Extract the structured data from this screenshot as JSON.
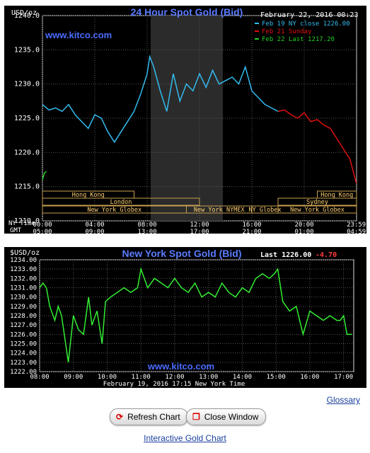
{
  "chart_data": [
    {
      "type": "line",
      "title": "24 Hour Spot Gold (Bid)",
      "watermark": "www.kitco.com",
      "date_text": "February 22, 2016 00:23",
      "yunit": "USD/oz",
      "ylim": [
        1210,
        1240
      ],
      "yticks": [
        "1210.0",
        "1215.0",
        "1220.0",
        "1225.0",
        "1230.0",
        "1235.0",
        "1240.0"
      ],
      "tz_labels": [
        "NY Time",
        "GMT"
      ],
      "x_ny": [
        "00:00",
        "04:00",
        "08:00",
        "12:00",
        "16:00",
        "20:00",
        "23:59"
      ],
      "x_gmt": [
        "05:00",
        "09:00",
        "13:00",
        "17:00",
        "21:00",
        "01:00",
        "04:59"
      ],
      "legend": [
        {
          "label": "Feb 19 NY close 1226.00",
          "color": "#33bbee"
        },
        {
          "label": "Feb 21 Sunday",
          "color": "#e01010"
        },
        {
          "label": "Feb 22 Last 1217.20",
          "color": "#22cc22"
        }
      ],
      "sessions": [
        {
          "label": "Hong Kong",
          "row": 0
        },
        {
          "label": "London",
          "row": 1
        },
        {
          "label": "New York Globex",
          "row": 2
        },
        {
          "label": "New York NYMEX",
          "row": 2
        },
        {
          "label": "NY Globex",
          "row": 2
        },
        {
          "label": "Hong Kong",
          "row": 0
        },
        {
          "label": "Sydney",
          "row": 1
        },
        {
          "label": "New York Globex",
          "row": 2
        }
      ],
      "series": [
        {
          "name": "Feb 19 NY close 1226.00",
          "color": "#33bbee",
          "x": [
            0,
            0.5,
            1,
            1.5,
            2,
            2.5,
            3,
            3.5,
            4,
            4.5,
            5,
            5.5,
            6,
            6.5,
            7,
            7.5,
            8,
            8.2,
            8.5,
            9,
            9.5,
            10,
            10.5,
            11,
            11.5,
            12,
            12.5,
            13,
            13.5,
            14,
            14.5,
            15,
            15.5,
            16,
            16.5,
            17,
            17.5,
            18
          ],
          "y": [
            1227,
            1226.2,
            1226.5,
            1226,
            1227,
            1225.5,
            1224.5,
            1223.5,
            1225.5,
            1225,
            1223,
            1221.5,
            1223,
            1224.5,
            1226,
            1228.5,
            1231.5,
            1234,
            1232.5,
            1229,
            1226,
            1231.5,
            1227.5,
            1230,
            1229,
            1231.5,
            1229.5,
            1232,
            1230,
            1230.5,
            1231,
            1230,
            1232.5,
            1229,
            1228,
            1227,
            1226.5,
            1226
          ]
        },
        {
          "name": "Feb 21 Sunday",
          "color": "#e01010",
          "x": [
            18,
            18.5,
            19,
            19.5,
            20,
            20.5,
            21,
            21.5,
            22,
            22.5,
            23,
            23.5,
            23.98
          ],
          "y": [
            1226,
            1226.2,
            1225.5,
            1225,
            1225.8,
            1224.5,
            1224.8,
            1224,
            1223.5,
            1222,
            1220.5,
            1219,
            1215.5
          ]
        },
        {
          "name": "Feb 22 Last 1217.20",
          "color": "#22cc22",
          "x": [
            0,
            0.15,
            0.3
          ],
          "y": [
            1216,
            1217,
            1217.2
          ]
        }
      ]
    },
    {
      "type": "line",
      "title": "New York Spot Gold (Bid)",
      "watermark": "www.kitco.com",
      "yunit": "$USD/oz",
      "last_label": "Last 1226.00",
      "change_label": "-4.70",
      "timestamp": "February 19, 2016 17:15 New York Time",
      "ylim": [
        1222,
        1234
      ],
      "yticks": [
        "1222.00",
        "1223.00",
        "1224.00",
        "1225.00",
        "1226.00",
        "1227.00",
        "1228.00",
        "1229.00",
        "1230.00",
        "1231.00",
        "1232.00",
        "1233.00",
        "1234.00"
      ],
      "xticks": [
        "08:00",
        "09:00",
        "10:00",
        "11:00",
        "12:00",
        "13:00",
        "14:00",
        "15:00",
        "16:00",
        "17:00"
      ],
      "series": [
        {
          "name": "",
          "color": "#33ee33",
          "x": [
            8,
            8.1,
            8.2,
            8.3,
            8.45,
            8.55,
            8.65,
            8.75,
            8.85,
            9,
            9.15,
            9.3,
            9.45,
            9.55,
            9.7,
            9.85,
            9.95,
            10.1,
            10.3,
            10.5,
            10.7,
            10.9,
            11,
            11.1,
            11.2,
            11.4,
            11.6,
            11.8,
            12,
            12.2,
            12.4,
            12.6,
            12.8,
            13,
            13.2,
            13.4,
            13.6,
            13.8,
            14,
            14.2,
            14.4,
            14.6,
            14.8,
            14.95,
            15.05,
            15.2,
            15.4,
            15.6,
            15.8,
            16,
            16.2,
            16.4,
            16.6,
            16.8,
            16.9,
            17,
            17.1,
            17.25
          ],
          "y": [
            1231,
            1231.5,
            1231,
            1229,
            1227.5,
            1229,
            1228,
            1225.5,
            1223,
            1228,
            1226.5,
            1226,
            1230,
            1227,
            1228.5,
            1225,
            1229.5,
            1230,
            1230.5,
            1231,
            1230.5,
            1231,
            1233,
            1232,
            1231,
            1232,
            1231.5,
            1231,
            1232,
            1231,
            1230.5,
            1231.5,
            1230,
            1230.5,
            1230,
            1231.5,
            1230.5,
            1230,
            1231,
            1230.5,
            1232,
            1232.5,
            1232,
            1232.5,
            1233,
            1229.5,
            1228.5,
            1229,
            1226,
            1228.5,
            1228,
            1227.5,
            1228,
            1227.5,
            1227.5,
            1228,
            1226,
            1226
          ]
        }
      ]
    }
  ],
  "links": {
    "glossary": "Glossary",
    "interactive": "Interactive Gold Chart"
  },
  "buttons": {
    "refresh": "Refresh Chart",
    "close": "Close Window"
  },
  "icons": {
    "refresh": "refresh-icon",
    "close": "window-icon"
  }
}
